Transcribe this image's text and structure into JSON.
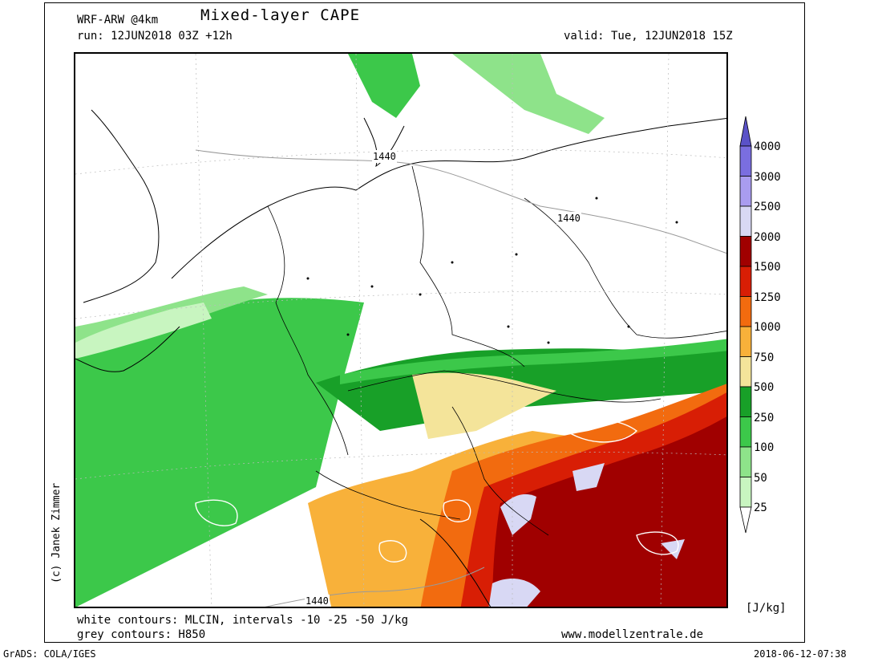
{
  "header": {
    "model": "WRF-ARW @4km",
    "title": "Mixed-layer CAPE",
    "run": "run: 12JUN2018 03Z +12h",
    "valid": "valid: Tue, 12JUN2018 15Z"
  },
  "credit": "(c) Janek Zimmer",
  "footer": {
    "white_contours": "white contours: MLCIN, intervals -10 -25 -50 J/kg",
    "grey_contours": "grey contours: H850",
    "website": "www.modellzentrale.de",
    "grads": "GrADS: COLA/IGES",
    "timestamp": "2018-06-12-07:38"
  },
  "map": {
    "contour_labels": [
      {
        "text": "1440"
      },
      {
        "text": "1440"
      },
      {
        "text": "1440"
      }
    ]
  },
  "legend": {
    "unit": "[J/kg]",
    "levels": [
      {
        "value": "4000",
        "color": "#5a52c8"
      },
      {
        "value": "3000",
        "color": "#7a6ee0"
      },
      {
        "value": "2500",
        "color": "#a99cf0"
      },
      {
        "value": "2000",
        "color": "#d8d8f4"
      },
      {
        "value": "1500",
        "color": "#a00000"
      },
      {
        "value": "1250",
        "color": "#d81e05"
      },
      {
        "value": "1000",
        "color": "#f26b0f"
      },
      {
        "value": "750",
        "color": "#f8b13a"
      },
      {
        "value": "500",
        "color": "#f4e49a"
      },
      {
        "value": "250",
        "color": "#18a028"
      },
      {
        "value": "100",
        "color": "#3cc84a"
      },
      {
        "value": "50",
        "color": "#8ee38a"
      },
      {
        "value": "25",
        "color": "#c8f5c0"
      }
    ]
  }
}
